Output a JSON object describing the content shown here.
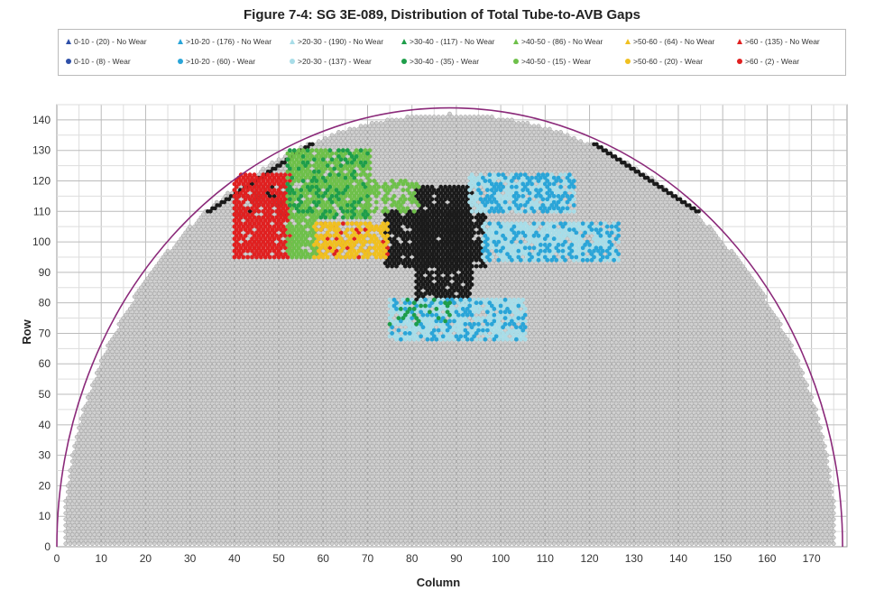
{
  "chart_data": {
    "type": "scatter",
    "title": "Figure 7-4:  SG 3E-089, Distribution of Total Tube-to-AVB Gaps",
    "xlabel": "Column",
    "ylabel": "Row",
    "xlim": [
      0,
      178
    ],
    "ylim": [
      0,
      145
    ],
    "x_ticks": [
      "0",
      "10",
      "20",
      "30",
      "40",
      "50",
      "60",
      "70",
      "80",
      "90",
      "100",
      "110",
      "120",
      "130",
      "140",
      "150",
      "160",
      "170"
    ],
    "y_ticks": [
      "0",
      "10",
      "20",
      "30",
      "40",
      "50",
      "60",
      "70",
      "80",
      "90",
      "100",
      "110",
      "120",
      "130",
      "140"
    ],
    "grid": true,
    "legend_position": "top",
    "boundary": {
      "shape": "semicircle",
      "center_x": 88.5,
      "radius_columns": 88.5,
      "apex_row": 144,
      "color": "#8b2a7a"
    },
    "tubesheet": {
      "fill_color": "#d0d0d0",
      "edge_color": "#888888",
      "row_step": 1,
      "column_step": 1,
      "shell_margin_rows": 2
    },
    "legend": [
      {
        "label": "0-10 - (20) - No Wear",
        "marker": "triangle",
        "color": "#2e4fa8"
      },
      {
        "label": ">10-20 - (176) - No Wear",
        "marker": "triangle",
        "color": "#2aa5d8"
      },
      {
        "label": ">20-30 - (190) - No Wear",
        "marker": "triangle",
        "color": "#a8dde8"
      },
      {
        "label": ">30-40 - (117) - No Wear",
        "marker": "triangle",
        "color": "#1e9e4a"
      },
      {
        "label": ">40-50 - (86) - No Wear",
        "marker": "triangle",
        "color": "#6ec04a"
      },
      {
        "label": ">50-60 - (64) - No Wear",
        "marker": "triangle",
        "color": "#f0c020"
      },
      {
        "label": ">60 - (135) - No Wear",
        "marker": "triangle",
        "color": "#e02020"
      },
      {
        "label": "0-10 - (8) - Wear",
        "marker": "circle",
        "color": "#2e4fa8"
      },
      {
        "label": ">10-20 - (60) - Wear",
        "marker": "circle",
        "color": "#2aa5d8"
      },
      {
        "label": ">20-30 - (137) - Wear",
        "marker": "circle",
        "color": "#a8dde8"
      },
      {
        "label": ">30-40 - (35) - Wear",
        "marker": "circle",
        "color": "#1e9e4a"
      },
      {
        "label": ">40-50 - (15) - Wear",
        "marker": "circle",
        "color": "#6ec04a"
      },
      {
        "label": ">50-60 - (20) - Wear",
        "marker": "circle",
        "color": "#f0c020"
      },
      {
        "label": ">60 - (2) - Wear",
        "marker": "circle",
        "color": "#e02020"
      }
    ],
    "regions": [
      {
        "category": "black",
        "color": "#1a1a1a",
        "x": [
          81,
          93
        ],
        "y": [
          80,
          118
        ],
        "density": 0.9
      },
      {
        "category": "black",
        "color": "#1a1a1a",
        "x": [
          74,
          96
        ],
        "y": [
          92,
          110
        ],
        "density": 0.85
      },
      {
        "category": "black-diagonal",
        "color": "#1a1a1a",
        "line_from": [
          34,
          110
        ],
        "line_to": [
          57,
          132
        ],
        "width": 2
      },
      {
        "category": "black-diagonal",
        "color": "#1a1a1a",
        "line_from": [
          121,
          132
        ],
        "line_to": [
          144,
          110
        ],
        "width": 2
      },
      {
        "category": "black",
        "color": "#1a1a1a",
        "x": [
          40,
          52
        ],
        "y": [
          108,
          118
        ],
        "density": 0.5
      },
      {
        "category": ">60",
        "color": "#e02020",
        "x": [
          40,
          52
        ],
        "y": [
          95,
          122
        ],
        "density": 0.9
      },
      {
        "category": ">60",
        "color": "#e02020",
        "x": [
          58,
          74
        ],
        "y": [
          95,
          106
        ],
        "density": 0.35
      },
      {
        "category": ">40-50",
        "color": "#6ec04a",
        "x": [
          52,
          70
        ],
        "y": [
          108,
          130
        ],
        "density": 0.85
      },
      {
        "category": ">30-40",
        "color": "#1e9e4a",
        "x": [
          52,
          70
        ],
        "y": [
          108,
          130
        ],
        "density": 0.3
      },
      {
        "category": ">40-50",
        "color": "#6ec04a",
        "x": [
          52,
          58
        ],
        "y": [
          95,
          108
        ],
        "density": 0.8
      },
      {
        "category": ">40-50",
        "color": "#6ec04a",
        "x": [
          70,
          81
        ],
        "y": [
          110,
          120
        ],
        "density": 0.6
      },
      {
        "category": ">50-60",
        "color": "#f0c020",
        "x": [
          58,
          74
        ],
        "y": [
          95,
          106
        ],
        "density": 0.7
      },
      {
        "category": ">20-30",
        "color": "#a8dde8",
        "x": [
          93,
          116
        ],
        "y": [
          110,
          122
        ],
        "density": 0.8
      },
      {
        "category": ">10-20",
        "color": "#2aa5d8",
        "x": [
          95,
          116
        ],
        "y": [
          110,
          122
        ],
        "density": 0.5
      },
      {
        "category": ">20-30",
        "color": "#a8dde8",
        "x": [
          96,
          126
        ],
        "y": [
          94,
          106
        ],
        "density": 0.85
      },
      {
        "category": ">10-20",
        "color": "#2aa5d8",
        "x": [
          96,
          126
        ],
        "y": [
          94,
          106
        ],
        "density": 0.35
      },
      {
        "category": ">20-30",
        "color": "#a8dde8",
        "x": [
          75,
          105
        ],
        "y": [
          68,
          81
        ],
        "density": 0.85
      },
      {
        "category": ">10-20",
        "color": "#2aa5d8",
        "x": [
          75,
          105
        ],
        "y": [
          68,
          81
        ],
        "density": 0.3
      },
      {
        "category": ">30-40",
        "color": "#1e9e4a",
        "x": [
          75,
          88
        ],
        "y": [
          73,
          81
        ],
        "density": 0.3
      }
    ]
  }
}
